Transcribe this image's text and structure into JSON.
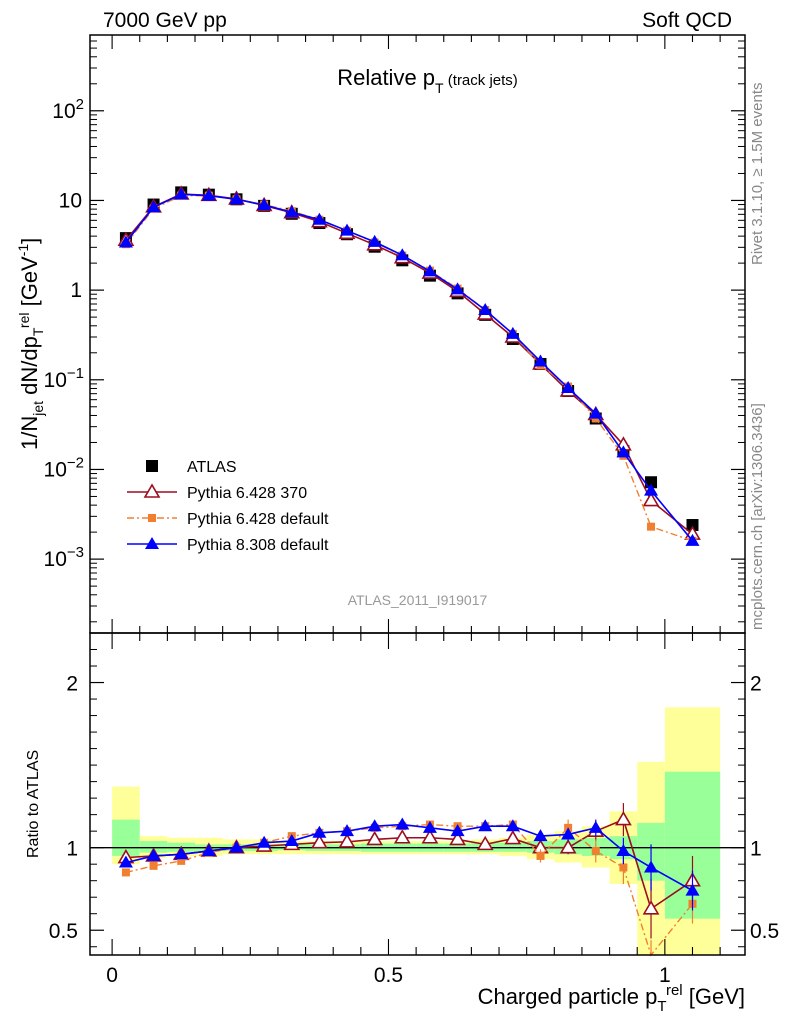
{
  "header": {
    "left": "7000 GeV pp",
    "right": "Soft QCD"
  },
  "side_labels": {
    "rivet": "Rivet 3.1.10, ≥ 1.5M events",
    "mcplots": "mcplots.cern.ch [arXiv:1306.3436]"
  },
  "colors": {
    "atlas": "#000000",
    "py6_370": "#9b0d20",
    "py6_default": "#f08030",
    "py8": "#0000ff",
    "band_inner": "#99ff99",
    "band_outer": "#ffff99"
  },
  "chart_data": [
    {
      "type": "scatter",
      "title": "Relative p",
      "title_sub": "T",
      "title_suffix": " (track jets)",
      "analysis_label": "ATLAS_2011_I919017",
      "ylabel": "1/N_jet dN/dp_T^rel [GeV^-1]",
      "yscale": "log",
      "ylim": [
        0.00015,
        700
      ],
      "xlim": [
        -0.04,
        1.145
      ],
      "yticks": [
        {
          "v": 0.001,
          "base": "10",
          "exp": "−3"
        },
        {
          "v": 0.01,
          "base": "10",
          "exp": "−2"
        },
        {
          "v": 0.1,
          "base": "10",
          "exp": "−1"
        },
        {
          "v": 1,
          "base": "1",
          "exp": ""
        },
        {
          "v": 10,
          "base": "10",
          "exp": ""
        },
        {
          "v": 100,
          "base": "10",
          "exp": "2"
        }
      ],
      "legend_position": "bottom-left",
      "x": [
        0.025,
        0.075,
        0.125,
        0.175,
        0.225,
        0.275,
        0.325,
        0.375,
        0.425,
        0.475,
        0.525,
        0.575,
        0.625,
        0.675,
        0.725,
        0.775,
        0.825,
        0.875,
        0.925,
        0.975,
        1.05
      ],
      "series": [
        {
          "name": "ATLAS",
          "key": "atlas",
          "marker": "square",
          "values": [
            3.8,
            9.0,
            12.3,
            11.6,
            10.3,
            8.7,
            7.1,
            5.6,
            4.2,
            3.05,
            2.15,
            1.45,
            0.92,
            0.53,
            0.285,
            0.15,
            0.075,
            0.037,
            0.016,
            0.0072,
            0.0024
          ]
        },
        {
          "name": "Pythia 6.428 370",
          "key": "py6_370",
          "marker": "triangle-open",
          "values": [
            3.6,
            8.5,
            11.8,
            11.4,
            10.4,
            8.8,
            7.3,
            5.8,
            4.3,
            3.2,
            2.3,
            1.55,
            0.97,
            0.54,
            0.3,
            0.15,
            0.075,
            0.041,
            0.0188,
            0.0045,
            0.0019
          ]
        },
        {
          "name": "Pythia 6.428 default",
          "key": "py6_default",
          "marker": "square-small",
          "values": [
            3.25,
            8.1,
            11.3,
            11.3,
            10.3,
            9.0,
            7.6,
            6.1,
            4.6,
            3.4,
            2.43,
            1.65,
            1.04,
            0.6,
            0.325,
            0.145,
            0.084,
            0.037,
            0.0142,
            0.0023,
            0.0016
          ]
        },
        {
          "name": "Pythia 8.308 default",
          "key": "py8",
          "marker": "triangle",
          "values": [
            3.4,
            8.4,
            11.7,
            11.3,
            10.3,
            8.9,
            7.4,
            6.1,
            4.6,
            3.45,
            2.45,
            1.62,
            1.02,
            0.6,
            0.325,
            0.16,
            0.081,
            0.042,
            0.0155,
            0.0058,
            0.0016
          ]
        }
      ]
    },
    {
      "type": "scatter",
      "title": "",
      "xlabel": "Charged particle p_T^rel [GeV]",
      "ylabel": "Ratio to ATLAS",
      "ylim": [
        0.35,
        2.3
      ],
      "xlim": [
        -0.04,
        1.145
      ],
      "yticks": [
        0.5,
        1,
        2
      ],
      "ytick_labels": [
        "0.5",
        "1",
        "2"
      ],
      "xticks": [
        0,
        0.5,
        1
      ],
      "xtick_labels": [
        "0",
        "0.5",
        "1"
      ],
      "bins": [
        [
          0,
          0.05
        ],
        [
          0.05,
          0.1
        ],
        [
          0.1,
          0.15
        ],
        [
          0.15,
          0.2
        ],
        [
          0.2,
          0.25
        ],
        [
          0.25,
          0.3
        ],
        [
          0.3,
          0.35
        ],
        [
          0.35,
          0.4
        ],
        [
          0.4,
          0.45
        ],
        [
          0.45,
          0.5
        ],
        [
          0.5,
          0.55
        ],
        [
          0.55,
          0.6
        ],
        [
          0.6,
          0.65
        ],
        [
          0.65,
          0.7
        ],
        [
          0.7,
          0.75
        ],
        [
          0.75,
          0.8
        ],
        [
          0.8,
          0.85
        ],
        [
          0.85,
          0.9
        ],
        [
          0.9,
          0.95
        ],
        [
          0.95,
          1.0
        ],
        [
          1.0,
          1.1
        ]
      ],
      "band_inner": [
        [
          0.95,
          1.17
        ],
        [
          0.97,
          1.04
        ],
        [
          0.975,
          1.03
        ],
        [
          0.98,
          1.02
        ],
        [
          0.98,
          1.02
        ],
        [
          0.98,
          1.02
        ],
        [
          0.985,
          1.02
        ],
        [
          0.98,
          1.02
        ],
        [
          0.98,
          1.02
        ],
        [
          0.975,
          1.025
        ],
        [
          0.975,
          1.025
        ],
        [
          0.975,
          1.025
        ],
        [
          0.975,
          1.025
        ],
        [
          0.975,
          1.03
        ],
        [
          0.975,
          1.03
        ],
        [
          0.97,
          1.04
        ],
        [
          0.96,
          1.05
        ],
        [
          0.95,
          1.06
        ],
        [
          0.93,
          1.07
        ],
        [
          0.8,
          1.15
        ],
        [
          0.57,
          1.46
        ]
      ],
      "band_outer": [
        [
          0.9,
          1.37
        ],
        [
          0.94,
          1.07
        ],
        [
          0.95,
          1.06
        ],
        [
          0.95,
          1.06
        ],
        [
          0.96,
          1.05
        ],
        [
          0.96,
          1.05
        ],
        [
          0.96,
          1.04
        ],
        [
          0.96,
          1.04
        ],
        [
          0.96,
          1.04
        ],
        [
          0.96,
          1.04
        ],
        [
          0.96,
          1.04
        ],
        [
          0.96,
          1.04
        ],
        [
          0.96,
          1.04
        ],
        [
          0.96,
          1.05
        ],
        [
          0.95,
          1.06
        ],
        [
          0.93,
          1.08
        ],
        [
          0.91,
          1.1
        ],
        [
          0.88,
          1.13
        ],
        [
          0.78,
          1.22
        ],
        [
          0.35,
          1.52
        ],
        [
          0.35,
          1.85
        ]
      ],
      "x": [
        0.025,
        0.075,
        0.125,
        0.175,
        0.225,
        0.275,
        0.325,
        0.375,
        0.425,
        0.475,
        0.525,
        0.575,
        0.625,
        0.675,
        0.725,
        0.775,
        0.825,
        0.875,
        0.925,
        0.975,
        1.05
      ],
      "series": [
        {
          "name": "Pythia 6.428 370",
          "key": "py6_370",
          "marker": "triangle-open",
          "values": [
            0.94,
            0.95,
            0.96,
            0.98,
            1.0,
            1.01,
            1.02,
            1.03,
            1.035,
            1.05,
            1.06,
            1.06,
            1.05,
            1.02,
            1.055,
            1.0,
            1.0,
            1.1,
            1.17,
            0.63,
            0.8
          ],
          "err": [
            0.02,
            0.01,
            0.01,
            0.01,
            0.01,
            0.01,
            0.01,
            0.01,
            0.01,
            0.01,
            0.01,
            0.01,
            0.01,
            0.01,
            0.02,
            0.03,
            0.04,
            0.06,
            0.1,
            0.18,
            0.15
          ]
        },
        {
          "name": "Pythia 6.428 default",
          "key": "py6_default",
          "marker": "square-small",
          "values": [
            0.85,
            0.89,
            0.92,
            0.97,
            1.0,
            1.03,
            1.07,
            1.09,
            1.1,
            1.12,
            1.13,
            1.14,
            1.13,
            1.13,
            1.14,
            0.95,
            1.12,
            0.98,
            0.88,
            0.32,
            0.66
          ],
          "err": [
            0.01,
            0.01,
            0.01,
            0.01,
            0.01,
            0.01,
            0.01,
            0.01,
            0.01,
            0.01,
            0.01,
            0.01,
            0.02,
            0.02,
            0.02,
            0.04,
            0.05,
            0.07,
            0.1,
            0.12,
            0.12
          ]
        },
        {
          "name": "Pythia 8.308 default",
          "key": "py8",
          "marker": "triangle",
          "values": [
            0.91,
            0.95,
            0.96,
            0.98,
            1.0,
            1.03,
            1.04,
            1.09,
            1.1,
            1.13,
            1.14,
            1.12,
            1.1,
            1.13,
            1.13,
            1.07,
            1.08,
            1.12,
            0.98,
            0.88,
            0.74
          ],
          "err": [
            0.01,
            0.01,
            0.01,
            0.01,
            0.01,
            0.01,
            0.01,
            0.01,
            0.01,
            0.01,
            0.01,
            0.01,
            0.01,
            0.02,
            0.02,
            0.03,
            0.04,
            0.05,
            0.08,
            0.14,
            0.12
          ]
        }
      ]
    }
  ]
}
